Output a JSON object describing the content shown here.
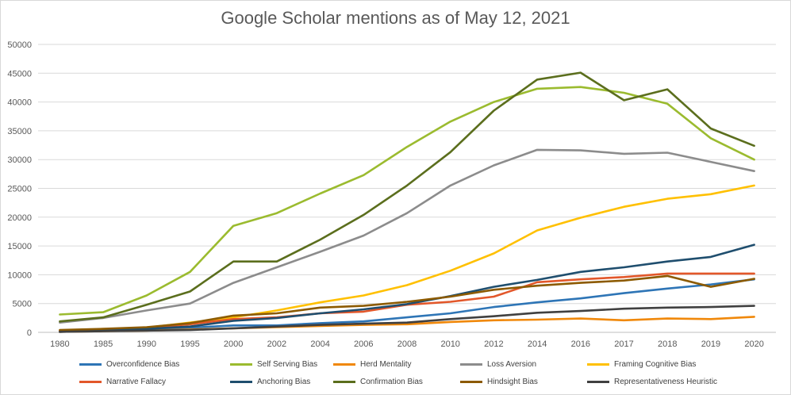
{
  "chart_data": {
    "type": "line",
    "title": "Google Scholar mentions as of May 12, 2021",
    "xlabel": "",
    "ylabel": "",
    "ylim": [
      0,
      50000
    ],
    "yticks": [
      0,
      5000,
      10000,
      15000,
      20000,
      25000,
      30000,
      35000,
      40000,
      45000,
      50000
    ],
    "categories": [
      "1980",
      "1985",
      "1990",
      "1995",
      "2000",
      "2002",
      "2004",
      "2006",
      "2008",
      "2010",
      "2012",
      "2014",
      "2016",
      "2017",
      "2018",
      "2019",
      "2020"
    ],
    "legend_position": "bottom",
    "grid": true,
    "series": [
      {
        "name": "Overconfidence Bias",
        "color": "#2e75b6",
        "values": [
          100,
          200,
          400,
          800,
          1200,
          1200,
          1600,
          1900,
          2600,
          3300,
          4400,
          5200,
          5900,
          6800,
          7600,
          8300,
          9200
        ]
      },
      {
        "name": "Self Serving Bias",
        "color": "#9bbb2f",
        "values": [
          3100,
          3500,
          6400,
          10500,
          18500,
          20700,
          24100,
          27300,
          32200,
          36600,
          40000,
          42300,
          42600,
          41600,
          39700,
          33700,
          30000
        ]
      },
      {
        "name": "Herd Mentality",
        "color": "#f0880a",
        "values": [
          100,
          200,
          300,
          500,
          700,
          900,
          1100,
          1300,
          1400,
          1800,
          2100,
          2200,
          2400,
          2100,
          2400,
          2300,
          2700
        ]
      },
      {
        "name": "Loss Aversion",
        "color": "#8c8c8c",
        "values": [
          1700,
          2500,
          3800,
          5000,
          8600,
          11300,
          14000,
          16800,
          20700,
          25500,
          29000,
          31700,
          31600,
          31000,
          31200,
          29600,
          28000
        ]
      },
      {
        "name": "Framing Cognitive Bias",
        "color": "#ffc000",
        "values": [
          200,
          400,
          800,
          1700,
          2600,
          3800,
          5200,
          6400,
          8200,
          10700,
          13700,
          17700,
          19900,
          21800,
          23200,
          24000,
          25500
        ]
      },
      {
        "name": "Narrative Fallacy",
        "color": "#e2572a",
        "values": [
          300,
          500,
          800,
          1400,
          2300,
          2600,
          3300,
          3600,
          4800,
          5300,
          6200,
          8700,
          9200,
          9600,
          10200,
          10200,
          10200
        ]
      },
      {
        "name": "Anchoring Bias",
        "color": "#1f4e6e",
        "values": [
          100,
          300,
          600,
          1000,
          2000,
          2500,
          3300,
          4000,
          4900,
          6300,
          7900,
          9100,
          10500,
          11300,
          12300,
          13100,
          15200
        ]
      },
      {
        "name": "Confirmation Bias",
        "color": "#5b6e1d",
        "values": [
          1900,
          2600,
          4800,
          7100,
          12300,
          12300,
          16100,
          20400,
          25500,
          31300,
          38500,
          43900,
          45100,
          40300,
          42200,
          35400,
          32400
        ]
      },
      {
        "name": "Hindsight Bias",
        "color": "#8c5a00",
        "values": [
          400,
          600,
          900,
          1600,
          2900,
          3300,
          4300,
          4600,
          5300,
          6200,
          7400,
          8100,
          8600,
          9000,
          9800,
          7900,
          9300
        ]
      },
      {
        "name": "Representativeness Heuristic",
        "color": "#404040",
        "values": [
          100,
          200,
          300,
          400,
          700,
          1000,
          1300,
          1500,
          1700,
          2300,
          2800,
          3400,
          3700,
          4100,
          4300,
          4400,
          4600
        ]
      }
    ]
  }
}
